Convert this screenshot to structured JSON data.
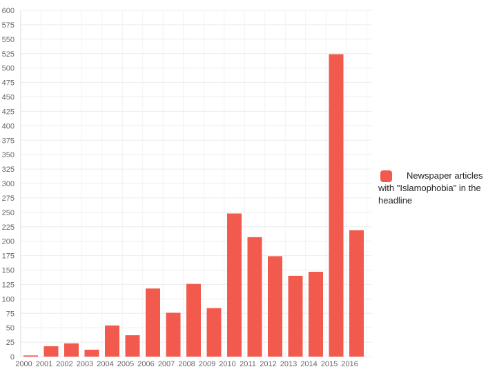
{
  "chart_data": {
    "type": "bar",
    "categories": [
      "2000",
      "2001",
      "2002",
      "2003",
      "2004",
      "2005",
      "2006",
      "2007",
      "2008",
      "2009",
      "2010",
      "2011",
      "2012",
      "2013",
      "2014",
      "2015",
      "2016"
    ],
    "series": [
      {
        "name": "Newspaper articles with \"Islamophobia\" in the headline",
        "values": [
          2,
          18,
          23,
          12,
          54,
          37,
          118,
          76,
          126,
          84,
          248,
          207,
          174,
          140,
          147,
          524,
          219
        ],
        "color": "#f25a4e"
      }
    ],
    "xlabel": "",
    "ylabel": "",
    "ylim": [
      0,
      600
    ],
    "yticks": [
      0,
      25,
      50,
      75,
      100,
      125,
      150,
      175,
      200,
      225,
      250,
      275,
      300,
      325,
      350,
      375,
      400,
      425,
      450,
      475,
      500,
      525,
      550,
      575,
      600
    ],
    "grid": true,
    "legend_position": "right"
  }
}
